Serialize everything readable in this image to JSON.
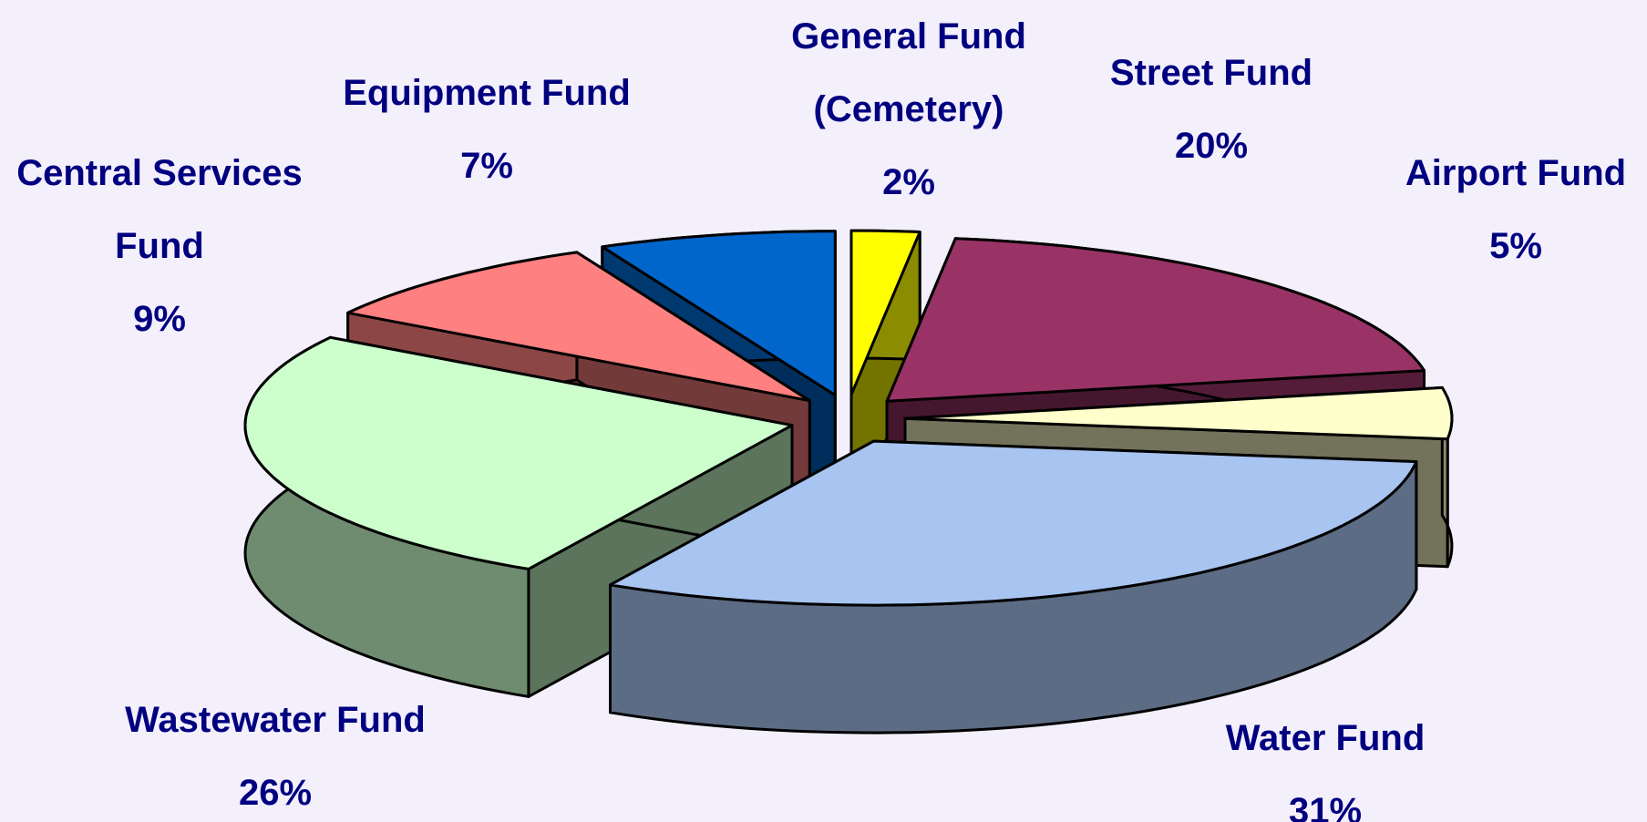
{
  "chart_data": {
    "type": "pie",
    "categories": [
      "General Fund (Cemetery)",
      "Street Fund",
      "Airport Fund",
      "Water Fund",
      "Wastewater Fund",
      "Central Services Fund",
      "Equipment Fund"
    ],
    "values": [
      2,
      20,
      5,
      31,
      26,
      9,
      7
    ],
    "value_labels": [
      "2%",
      "20%",
      "5%",
      "31%",
      "26%",
      "9%",
      "7%"
    ],
    "colors": [
      "#ffff00",
      "#993366",
      "#ffffcc",
      "#a8c4f0",
      "#ccffcc",
      "#ff8080",
      "#0066cc"
    ]
  }
}
